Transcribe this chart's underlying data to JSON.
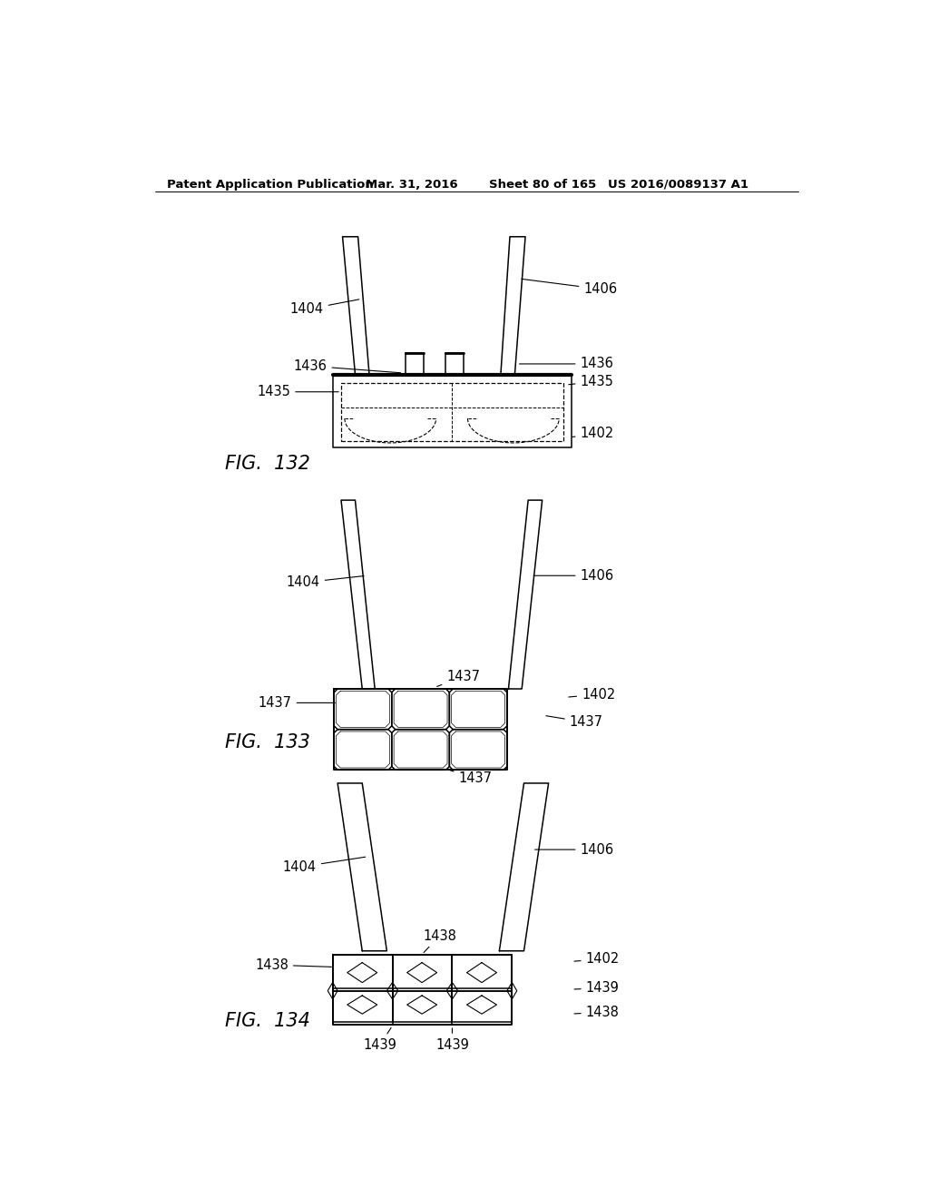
{
  "header_text": "Patent Application Publication",
  "header_date": "Mar. 31, 2016",
  "header_sheet": "Sheet 80 of 165",
  "header_patent": "US 2016/0089137 A1",
  "fig132_label": "FIG.  132",
  "fig133_label": "FIG.  133",
  "fig134_label": "FIG.  134",
  "bg_color": "#ffffff",
  "line_color": "#000000",
  "lw": 1.1,
  "fs": 10.5
}
